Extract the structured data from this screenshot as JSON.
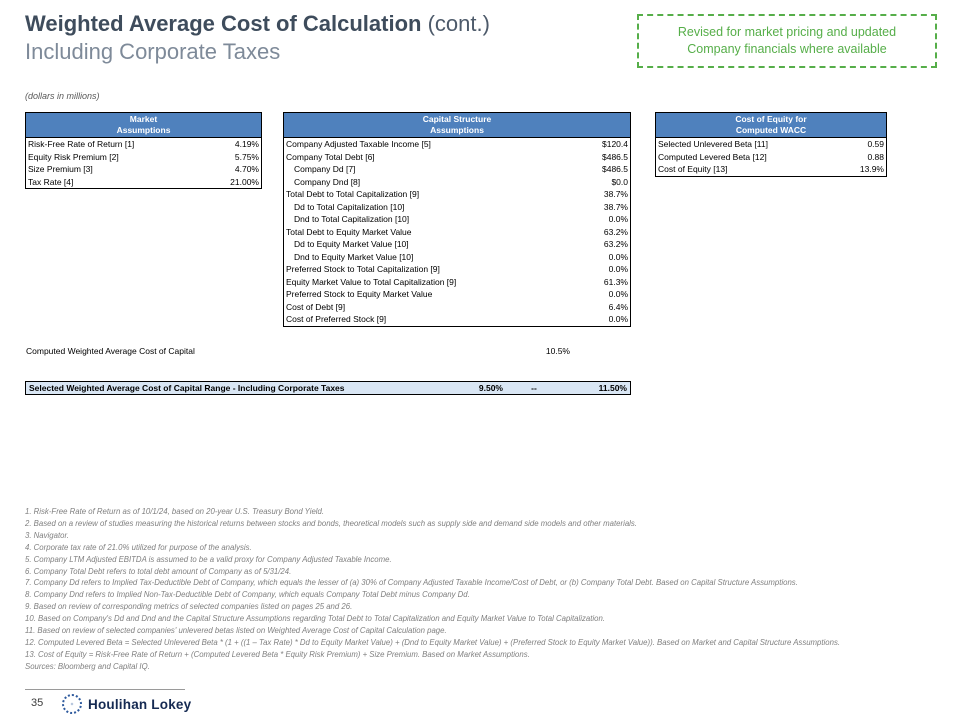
{
  "header": {
    "title_main": "Weighted Average Cost of Calculation",
    "title_cont": " (cont.)",
    "subtitle": "Including Corporate Taxes",
    "callout": "Revised for market pricing and updated Company financials where available",
    "units_note": "(dollars in millions)"
  },
  "colors": {
    "table_header_blue": "#4f81bd",
    "highlight_blue": "#d9e6f4",
    "callout_green": "#56ae49",
    "title_dark": "#3e4c5c",
    "logo_navy": "#152a52"
  },
  "tables": {
    "market": {
      "header_line1": "Market",
      "header_line2": "Assumptions",
      "rows": [
        {
          "label": "Risk-Free Rate of Return [1]",
          "value": "4.19%"
        },
        {
          "label": "Equity Risk Premium [2]",
          "value": "5.75%"
        },
        {
          "label": "Size Premium [3]",
          "value": "4.70%"
        },
        {
          "label": "Tax Rate [4]",
          "value": "21.00%"
        }
      ]
    },
    "capital": {
      "header_line1": "Capital Structure",
      "header_line2": "Assumptions",
      "rows": [
        {
          "label": "Company Adjusted Taxable Income [5]",
          "value": "$120.4"
        },
        {
          "label": "Company Total Debt [6]",
          "value": "$486.5"
        },
        {
          "label": "Company Dd [7]",
          "value": "$486.5"
        },
        {
          "label": "Company Dnd [8]",
          "value": "$0.0"
        },
        {
          "label": "Total Debt to Total Capitalization [9]",
          "value": "38.7%"
        },
        {
          "label": "Dd to Total Capitalization [10]",
          "value": "38.7%"
        },
        {
          "label": "Dnd to Total Capitalization [10]",
          "value": "0.0%"
        },
        {
          "label": "Total Debt to Equity Market Value",
          "value": "63.2%"
        },
        {
          "label": "Dd to Equity Market Value [10]",
          "value": "63.2%"
        },
        {
          "label": "Dnd to Equity Market Value [10]",
          "value": "0.0%"
        },
        {
          "label": "Preferred Stock to Total Capitalization [9]",
          "value": "0.0%"
        },
        {
          "label": "Equity Market Value to Total Capitalization [9]",
          "value": "61.3%"
        },
        {
          "label": "Preferred Stock to Equity Market Value",
          "value": "0.0%"
        },
        {
          "label": "Cost of Debt [9]",
          "value": "6.4%"
        },
        {
          "label": "Cost of Preferred Stock [9]",
          "value": "0.0%"
        }
      ]
    },
    "costeq": {
      "header_line1": "Cost of Equity for",
      "header_line2": "Computed WACC",
      "rows": [
        {
          "label": "Selected Unlevered Beta [11]",
          "value": "0.59"
        },
        {
          "label": "Computed Levered Beta [12]",
          "value": "0.88"
        },
        {
          "label": "Cost of Equity [13]",
          "value": "13.9%"
        }
      ]
    }
  },
  "computed_wacc": {
    "label": "Computed Weighted Average Cost of Capital",
    "value": "10.5%"
  },
  "selected_range": {
    "label": "Selected Weighted Average Cost of Capital Range - Including Corporate Taxes",
    "low": "9.50%",
    "dash": "--",
    "high": "11.50%"
  },
  "footnotes": [
    "1. Risk-Free Rate of Return as of 10/1/24, based on 20-year U.S. Treasury Bond Yield.",
    "2. Based on a review of studies measuring the historical returns between stocks and bonds, theoretical models such as supply side and demand side models and other materials.",
    "3. Navigator.",
    "4. Corporate tax rate of 21.0% utilized for purpose of the analysis.",
    "5. Company LTM Adjusted EBITDA is assumed to be a valid proxy for Company Adjusted Taxable Income.",
    "6. Company Total Debt refers to total debt amount of Company as of 5/31/24.",
    "7. Company Dd refers to Implied Tax-Deductible Debt of Company, which equals the lesser of (a) 30% of Company Adjusted Taxable Income/Cost of Debt, or (b) Company Total Debt. Based on Capital Structure Assumptions.",
    "8. Company Dnd refers to Implied Non-Tax-Deductible Debt of Company, which equals Company Total Debt minus Company Dd.",
    "9. Based on review of corresponding metrics of selected companies listed on pages 25 and 26.",
    "10. Based on Company's Dd and Dnd and the Capital Structure Assumptions regarding Total Debt to Total Capitalization and Equity Market Value to Total Capitalization.",
    "11. Based on review of selected companies' unlevered betas listed on Weighted Average Cost of Capital Calculation page.",
    "12. Computed Levered Beta = Selected Unlevered Beta * (1 + ((1 – Tax Rate) * Dd to Equity Market Value) + (Dnd to Equity Market Value) + (Preferred Stock to Equity Market Value)). Based on Market and Capital Structure Assumptions.",
    "13. Cost of Equity = Risk-Free Rate of Return + (Computed Levered Beta * Equity Risk Premium) + Size Premium. Based on Market Assumptions."
  ],
  "sources": "Sources: Bloomberg and Capital IQ.",
  "footer": {
    "page_number": "35",
    "logo_text": "Houlihan Lokey"
  }
}
